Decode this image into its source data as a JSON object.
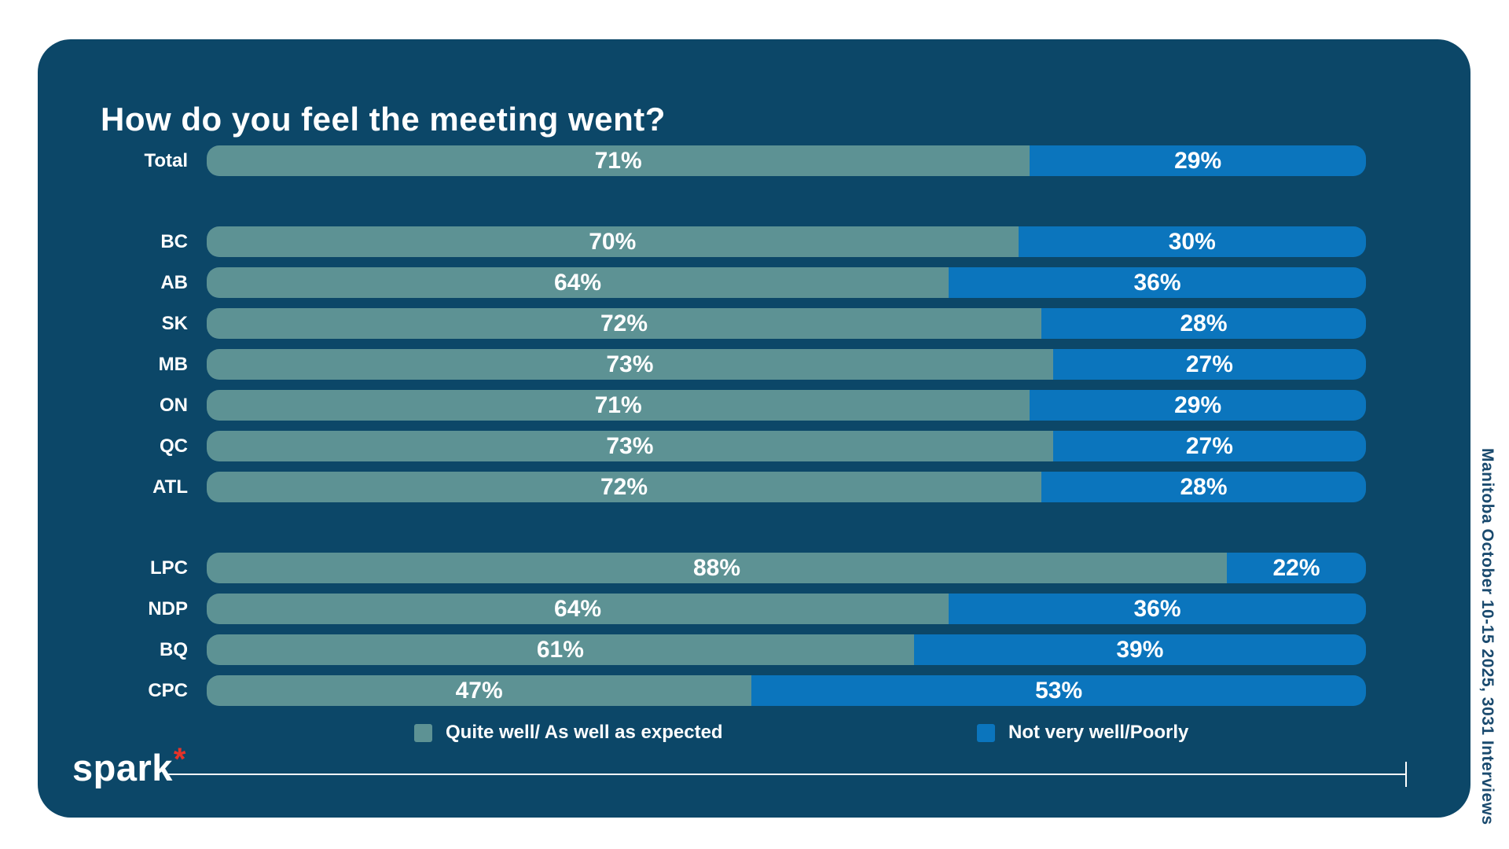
{
  "title": "How do you feel the meeting went?",
  "source_note": "Manitoba October 10-15 2025, 3031 Interviews",
  "logo": {
    "text": "spark",
    "asterisk": "*"
  },
  "colors": {
    "page_bg": "#ffffff",
    "card_bg": "#0c4768",
    "teal": "#5d9294",
    "blue": "#0b75bd",
    "accent_red": "#e63329",
    "note_text": "#1a4a6e",
    "text": "#ffffff"
  },
  "legend": [
    {
      "label": "Quite well/ As well as expected",
      "color": "#5d9294"
    },
    {
      "label": "Not very well/Poorly",
      "color": "#0b75bd"
    }
  ],
  "chart_data": {
    "type": "bar",
    "orientation": "horizontal",
    "stacked": true,
    "title": "How do you feel the meeting went?",
    "value_suffix": "%",
    "categories": [
      "Total",
      "BC",
      "AB",
      "SK",
      "MB",
      "ON",
      "QC",
      "ATL",
      "LPC",
      "NDP",
      "BQ",
      "CPC"
    ],
    "group_breaks": [
      1,
      8
    ],
    "series": [
      {
        "name": "Quite well/ As well as expected",
        "color": "#5d9294",
        "values": [
          71,
          70,
          64,
          72,
          73,
          71,
          73,
          72,
          88,
          64,
          61,
          47
        ]
      },
      {
        "name": "Not very well/Poorly",
        "color": "#0b75bd",
        "values": [
          29,
          30,
          36,
          28,
          27,
          29,
          27,
          28,
          22,
          36,
          39,
          53
        ]
      }
    ],
    "xlim": [
      0,
      100
    ],
    "grid": false,
    "legend_position": "bottom"
  }
}
